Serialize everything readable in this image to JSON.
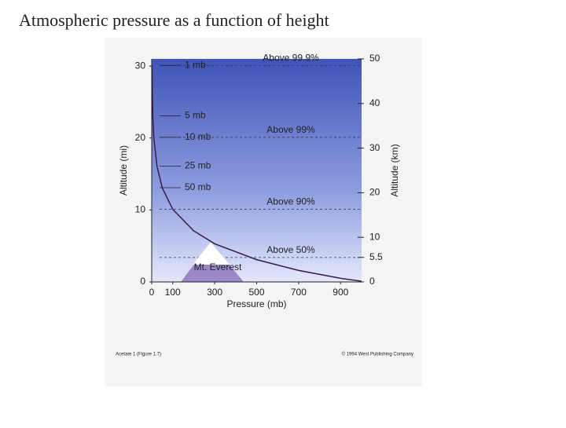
{
  "title": "Atmospheric pressure as a function of height",
  "chart_data": {
    "type": "line",
    "xlabel": "Pressure (mb)",
    "ylabel": "Altitude (mi)",
    "y2label": "Altitude (km)",
    "x": [
      1,
      5,
      10,
      25,
      50,
      100,
      200,
      300,
      500,
      700,
      900,
      1000
    ],
    "series": [
      {
        "name": "Pressure",
        "color": "#3a1c4a",
        "values": [
          30.1,
          23.1,
          20.1,
          16.1,
          13.1,
          10.1,
          7.1,
          5.3,
          3.1,
          1.6,
          0.5,
          0.1
        ]
      }
    ],
    "xlim": [
      0,
      1000
    ],
    "xticks": [
      0,
      100,
      300,
      500,
      700,
      900
    ],
    "ylim": [
      0,
      31
    ],
    "yticks": [
      0,
      10,
      20,
      30
    ],
    "y2lim": [
      0,
      50
    ],
    "y2ticks": [
      0,
      5.5,
      10,
      20,
      30,
      40,
      50
    ],
    "pressure_labels": [
      {
        "text": "1 mb",
        "y": 30.1
      },
      {
        "text": "5 mb",
        "y": 23.1
      },
      {
        "text": "10 mb",
        "y": 20.1
      },
      {
        "text": "25 mb",
        "y": 16.1
      },
      {
        "text": "50 mb",
        "y": 13.1
      }
    ],
    "level_labels": [
      {
        "text": "Above 99.9%",
        "y": 30.1
      },
      {
        "text": "Above 99%",
        "y": 20.1
      },
      {
        "text": "Above 90%",
        "y": 10.1
      },
      {
        "text": "Above 50%",
        "y": 3.4
      }
    ],
    "mountain": {
      "text": "Mt. Everest",
      "y": 5.5
    },
    "footer_left": "Acetate 1 (Figure 1.7)",
    "footer_right": "© 1994 West Publishing Company"
  }
}
